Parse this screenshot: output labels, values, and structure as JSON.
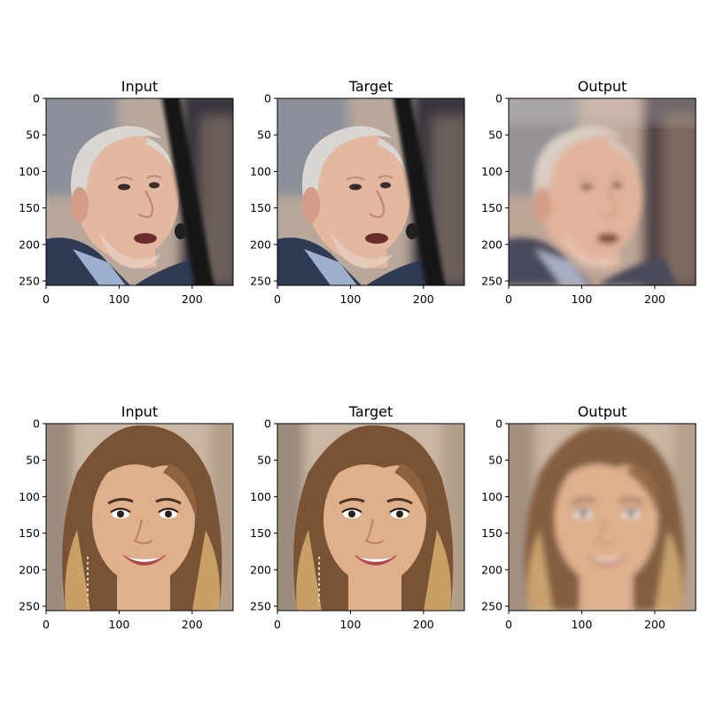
{
  "figure": {
    "panels": [
      {
        "title": "Input",
        "row": 0,
        "col": 0,
        "subject": "elderly-man",
        "variant": "sharp"
      },
      {
        "title": "Target",
        "row": 0,
        "col": 1,
        "subject": "elderly-man",
        "variant": "sharp"
      },
      {
        "title": "Output",
        "row": 0,
        "col": 2,
        "subject": "elderly-man",
        "variant": "reconstruction"
      },
      {
        "title": "Input",
        "row": 1,
        "col": 0,
        "subject": "young-woman",
        "variant": "sharp"
      },
      {
        "title": "Target",
        "row": 1,
        "col": 1,
        "subject": "young-woman",
        "variant": "sharp"
      },
      {
        "title": "Output",
        "row": 1,
        "col": 2,
        "subject": "young-woman",
        "variant": "reconstruction"
      }
    ],
    "axis": {
      "x_ticks": [
        "0",
        "100",
        "200"
      ],
      "y_ticks": [
        "0",
        "50",
        "100",
        "150",
        "200",
        "250"
      ],
      "x_tick_values": [
        0,
        100,
        200
      ],
      "y_tick_values": [
        0,
        50,
        100,
        150,
        200,
        250
      ],
      "extent": 256
    },
    "colors": {
      "man_bg_light": "#b8a79a",
      "man_bg_dark": "#3a3540",
      "man_skin": "#e4b7a0",
      "man_hair": "#d9d6d2",
      "man_suit": "#2f3a55",
      "man_shirt": "#9fb0cf",
      "man_pole": "#141414",
      "woman_bg": "#c9b7a4",
      "woman_hair": "#7a5234",
      "woman_hair_light": "#c79f67",
      "woman_skin": "#e0b08c",
      "woman_lips": "#b04a4a",
      "output_tint_man": "#d8a082",
      "output_tint_woman": "#d6b8a0"
    }
  }
}
